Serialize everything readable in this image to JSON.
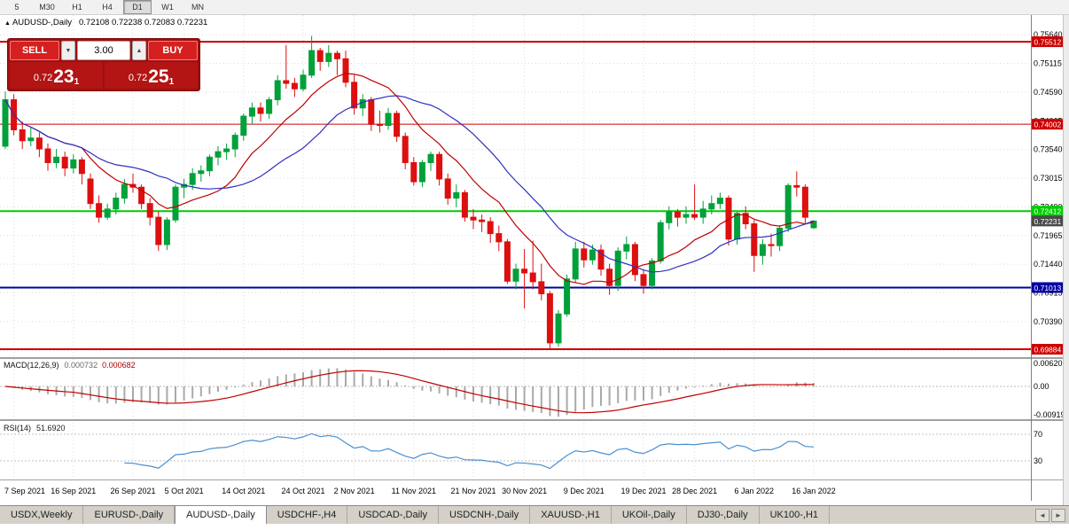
{
  "toolbar": {
    "timeframes": [
      "5",
      "M30",
      "H1",
      "H4",
      "D1",
      "W1",
      "MN"
    ],
    "active": "D1"
  },
  "chart": {
    "title_arrow": "▲",
    "symbol_title": "AUDUSD-,Daily",
    "ohlc_text": "0.72108 0.72238 0.72083 0.72231"
  },
  "trade_panel": {
    "sell_label": "SELL",
    "buy_label": "BUY",
    "volume": "3.00",
    "spin_down": "▼",
    "spin_up": "▲",
    "sell_price": {
      "prefix": "0.72",
      "big": "23",
      "sup": "1"
    },
    "buy_price": {
      "prefix": "0.72",
      "big": "25",
      "sup": "1"
    }
  },
  "chart_data": {
    "type": "candlestick",
    "symbol": "AUDUSD-",
    "timeframe": "Daily",
    "title": "AUDUSD-,Daily 0.72108 0.72238 0.72083 0.72231",
    "colors": {
      "bull": "#00a13a",
      "bear": "#dd0f0f",
      "grid": "#dcdcdc"
    },
    "y_axis_ticks": [
      "0.75640",
      "0.75115",
      "0.74590",
      "0.74065",
      "0.73540",
      "0.73015",
      "0.72490",
      "0.71965",
      "0.71440",
      "0.70915",
      "0.70390",
      "0.69865"
    ],
    "x_labels": [
      {
        "index": 1,
        "text": "7 Sep 2021"
      },
      {
        "index": 8,
        "text": "16 Sep 2021"
      },
      {
        "index": 15,
        "text": "26 Sep 2021"
      },
      {
        "index": 21,
        "text": "5 Oct 2021"
      },
      {
        "index": 28,
        "text": "14 Oct 2021"
      },
      {
        "index": 35,
        "text": "24 Oct 2021"
      },
      {
        "index": 41,
        "text": "2 Nov 2021"
      },
      {
        "index": 48,
        "text": "11 Nov 2021"
      },
      {
        "index": 55,
        "text": "21 Nov 2021"
      },
      {
        "index": 61,
        "text": "30 Nov 2021"
      },
      {
        "index": 68,
        "text": "9 Dec 2021"
      },
      {
        "index": 75,
        "text": "19 Dec 2021"
      },
      {
        "index": 81,
        "text": "28 Dec 2021"
      },
      {
        "index": 88,
        "text": "6 Jan 2022"
      },
      {
        "index": 95,
        "text": "16 Jan 2022"
      }
    ],
    "h_lines": [
      {
        "price": 0.75512,
        "label": "0.75512",
        "color": "#cc0000",
        "width": 2
      },
      {
        "price": 0.74002,
        "label": "0.74002",
        "color": "#cc0000",
        "width": 1
      },
      {
        "price": 0.72412,
        "label": "0.72412",
        "color": "#00cc00",
        "width": 2
      },
      {
        "price": 0.71013,
        "label": "0.71013",
        "color": "#0000a0",
        "width": 2
      },
      {
        "price": 0.69884,
        "label": "0.69884",
        "color": "#cc0000",
        "width": 2
      }
    ],
    "current_price": {
      "value": 0.72231,
      "label": "0.72231",
      "color": "#4a4a4a"
    },
    "moving_averages": [
      {
        "period": 10,
        "color": "#c00000"
      },
      {
        "period": 20,
        "color": "#3030c0"
      }
    ],
    "macd": {
      "label": "MACD(12,26,9)",
      "value_main": "0.000732",
      "value_signal": "0.000682",
      "fast": 12,
      "slow": 26,
      "signal": 9,
      "axis": {
        "max": "0.006201",
        "zero": "0.00",
        "min": "-0.00919"
      }
    },
    "rsi": {
      "label": "RSI(14)",
      "value": "51.6920",
      "period": 14,
      "levels": [
        70,
        30
      ]
    },
    "candles": [
      [
        0.736,
        0.746,
        0.7355,
        0.7445
      ],
      [
        0.7445,
        0.7455,
        0.738,
        0.739
      ],
      [
        0.739,
        0.7405,
        0.7355,
        0.737
      ],
      [
        0.737,
        0.7395,
        0.736,
        0.7375
      ],
      [
        0.7375,
        0.7385,
        0.734,
        0.7355
      ],
      [
        0.7355,
        0.7365,
        0.7315,
        0.733
      ],
      [
        0.733,
        0.7355,
        0.732,
        0.734
      ],
      [
        0.734,
        0.735,
        0.7305,
        0.732
      ],
      [
        0.732,
        0.7345,
        0.731,
        0.7335
      ],
      [
        0.7335,
        0.734,
        0.729,
        0.731
      ],
      [
        0.73,
        0.731,
        0.7245,
        0.7255
      ],
      [
        0.7255,
        0.727,
        0.722,
        0.723
      ],
      [
        0.723,
        0.7255,
        0.7225,
        0.7245
      ],
      [
        0.7245,
        0.7275,
        0.7235,
        0.7265
      ],
      [
        0.7265,
        0.73,
        0.7255,
        0.729
      ],
      [
        0.729,
        0.731,
        0.7275,
        0.7285
      ],
      [
        0.7285,
        0.729,
        0.7245,
        0.7255
      ],
      [
        0.7255,
        0.7265,
        0.7215,
        0.723
      ],
      [
        0.723,
        0.724,
        0.7168,
        0.718
      ],
      [
        0.718,
        0.723,
        0.717,
        0.7225
      ],
      [
        0.7225,
        0.729,
        0.722,
        0.7285
      ],
      [
        0.7285,
        0.73,
        0.7265,
        0.729
      ],
      [
        0.729,
        0.732,
        0.728,
        0.731
      ],
      [
        0.731,
        0.7325,
        0.7295,
        0.7315
      ],
      [
        0.7315,
        0.7345,
        0.7305,
        0.734
      ],
      [
        0.734,
        0.736,
        0.7325,
        0.735
      ],
      [
        0.735,
        0.7365,
        0.7335,
        0.7355
      ],
      [
        0.7355,
        0.7385,
        0.734,
        0.738
      ],
      [
        0.738,
        0.742,
        0.737,
        0.7415
      ],
      [
        0.7415,
        0.744,
        0.74,
        0.743
      ],
      [
        0.743,
        0.744,
        0.7405,
        0.742
      ],
      [
        0.742,
        0.745,
        0.741,
        0.7445
      ],
      [
        0.7445,
        0.749,
        0.7435,
        0.748
      ],
      [
        0.748,
        0.7545,
        0.7465,
        0.7475
      ],
      [
        0.7475,
        0.7485,
        0.745,
        0.7465
      ],
      [
        0.7465,
        0.75,
        0.746,
        0.749
      ],
      [
        0.749,
        0.7562,
        0.7485,
        0.7535
      ],
      [
        0.7535,
        0.754,
        0.7498,
        0.7515
      ],
      [
        0.7515,
        0.7545,
        0.7505,
        0.753
      ],
      [
        0.753,
        0.7535,
        0.749,
        0.752
      ],
      [
        0.752,
        0.7535,
        0.7468,
        0.7477
      ],
      [
        0.7477,
        0.749,
        0.7418,
        0.743
      ],
      [
        0.743,
        0.7455,
        0.7415,
        0.7445
      ],
      [
        0.7445,
        0.745,
        0.7388,
        0.74
      ],
      [
        0.74,
        0.7425,
        0.7385,
        0.7398
      ],
      [
        0.7398,
        0.743,
        0.739,
        0.742
      ],
      [
        0.742,
        0.7425,
        0.7368,
        0.7378
      ],
      [
        0.7378,
        0.7385,
        0.7318,
        0.733
      ],
      [
        0.733,
        0.734,
        0.7288,
        0.7295
      ],
      [
        0.7295,
        0.7335,
        0.7285,
        0.733
      ],
      [
        0.733,
        0.735,
        0.7315,
        0.7345
      ],
      [
        0.7345,
        0.735,
        0.7288,
        0.73
      ],
      [
        0.73,
        0.731,
        0.7253,
        0.7265
      ],
      [
        0.7265,
        0.729,
        0.7248,
        0.7275
      ],
      [
        0.7275,
        0.728,
        0.7222,
        0.723
      ],
      [
        0.723,
        0.7245,
        0.7208,
        0.7225
      ],
      [
        0.7225,
        0.7235,
        0.7203,
        0.7222
      ],
      [
        0.7222,
        0.723,
        0.7183,
        0.72
      ],
      [
        0.72,
        0.7215,
        0.7168,
        0.7185
      ],
      [
        0.7185,
        0.719,
        0.7108,
        0.7113
      ],
      [
        0.7113,
        0.7145,
        0.7098,
        0.7135
      ],
      [
        0.7135,
        0.7172,
        0.7063,
        0.7128
      ],
      [
        0.7128,
        0.7187,
        0.7098,
        0.7112
      ],
      [
        0.7112,
        0.7145,
        0.7078,
        0.709
      ],
      [
        0.709,
        0.7095,
        0.699,
        0.7
      ],
      [
        0.7,
        0.706,
        0.6993,
        0.7053
      ],
      [
        0.7053,
        0.7125,
        0.7048,
        0.7117
      ],
      [
        0.7117,
        0.7185,
        0.711,
        0.7172
      ],
      [
        0.7172,
        0.7185,
        0.7138,
        0.7152
      ],
      [
        0.7152,
        0.718,
        0.7143,
        0.717
      ],
      [
        0.717,
        0.718,
        0.7123,
        0.7135
      ],
      [
        0.7135,
        0.7145,
        0.7088,
        0.7105
      ],
      [
        0.7105,
        0.7175,
        0.7095,
        0.7168
      ],
      [
        0.7168,
        0.7195,
        0.7153,
        0.718
      ],
      [
        0.718,
        0.7185,
        0.7113,
        0.7125
      ],
      [
        0.7125,
        0.7135,
        0.709,
        0.7105
      ],
      [
        0.7105,
        0.7155,
        0.7098,
        0.715
      ],
      [
        0.715,
        0.7225,
        0.7145,
        0.722
      ],
      [
        0.722,
        0.725,
        0.7208,
        0.724
      ],
      [
        0.724,
        0.7245,
        0.7213,
        0.723
      ],
      [
        0.723,
        0.725,
        0.7218,
        0.7235
      ],
      [
        0.7235,
        0.729,
        0.7225,
        0.723
      ],
      [
        0.723,
        0.726,
        0.7218,
        0.7245
      ],
      [
        0.7245,
        0.727,
        0.7235,
        0.7255
      ],
      [
        0.7255,
        0.7275,
        0.7245,
        0.7265
      ],
      [
        0.7265,
        0.727,
        0.7178,
        0.719
      ],
      [
        0.719,
        0.724,
        0.718,
        0.7237
      ],
      [
        0.7237,
        0.725,
        0.7208,
        0.7218
      ],
      [
        0.7218,
        0.7225,
        0.713,
        0.716
      ],
      [
        0.716,
        0.719,
        0.7143,
        0.718
      ],
      [
        0.718,
        0.72,
        0.7158,
        0.7178
      ],
      [
        0.7178,
        0.7215,
        0.7168,
        0.721
      ],
      [
        0.721,
        0.7292,
        0.7203,
        0.7288
      ],
      [
        0.7288,
        0.7314,
        0.7268,
        0.7285
      ],
      [
        0.7285,
        0.729,
        0.7218,
        0.723
      ],
      [
        0.72108,
        0.72238,
        0.72083,
        0.72231
      ]
    ]
  },
  "tabbar": {
    "tabs": [
      "USDX,Weekly",
      "EURUSD-,Daily",
      "AUDUSD-,Daily",
      "USDCHF-,H4",
      "USDCAD-,Daily",
      "USDCNH-,Daily",
      "XAUUSD-,H1",
      "UKOil-,Daily",
      "DJ30-,Daily",
      "UK100-,H1"
    ],
    "active": "AUDUSD-,Daily",
    "scroll_left": "◄",
    "scroll_right": "►"
  }
}
